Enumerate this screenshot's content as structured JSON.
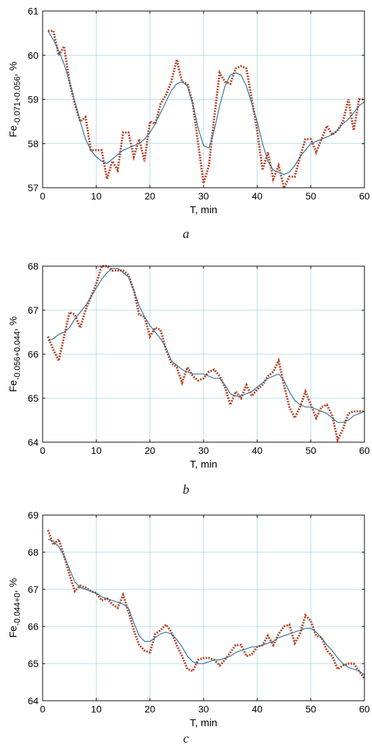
{
  "colors": {
    "measured": "#B5462A",
    "model": "#2A6F97",
    "grid": "#9FD2E6",
    "axis": "#000000"
  },
  "chart_data": [
    {
      "type": "line",
      "caption": "a",
      "ylabel_main": "Fe",
      "ylabel_sub": "-0.071+0.056",
      "ylabel_tail": ", %",
      "xlabel": "T, min",
      "xlim": [
        0,
        60
      ],
      "ylim": [
        57,
        61
      ],
      "xticks": [
        0,
        10,
        20,
        30,
        40,
        50,
        60
      ],
      "yticks": [
        57,
        58,
        59,
        60,
        61
      ],
      "grid": true,
      "x": [
        1,
        2,
        3,
        4,
        5,
        6,
        7,
        8,
        9,
        10,
        11,
        12,
        13,
        14,
        15,
        16,
        17,
        18,
        19,
        20,
        21,
        22,
        23,
        24,
        25,
        26,
        27,
        28,
        29,
        30,
        31,
        32,
        33,
        34,
        35,
        36,
        37,
        38,
        39,
        40,
        41,
        42,
        43,
        44,
        45,
        46,
        47,
        48,
        49,
        50,
        51,
        52,
        53,
        54,
        55,
        56,
        57,
        58,
        59,
        60
      ],
      "series": [
        {
          "style": "dotted",
          "values": [
            60.55,
            60.55,
            60.0,
            60.2,
            59.4,
            58.9,
            58.5,
            58.6,
            57.85,
            57.85,
            57.85,
            57.2,
            57.6,
            57.4,
            58.25,
            58.25,
            57.7,
            58.1,
            57.6,
            58.5,
            58.45,
            58.9,
            59.1,
            59.4,
            59.9,
            59.4,
            59.35,
            58.9,
            58.0,
            57.1,
            57.5,
            58.6,
            59.6,
            59.4,
            59.35,
            59.7,
            59.75,
            59.7,
            59.0,
            58.3,
            57.4,
            57.8,
            57.2,
            57.5,
            57.0,
            57.25,
            57.25,
            57.7,
            58.1,
            58.1,
            57.8,
            58.1,
            58.4,
            58.2,
            58.3,
            58.5,
            59.0,
            58.3,
            59.0,
            59.0
          ]
        },
        {
          "style": "solid",
          "values": [
            60.55,
            60.35,
            60.1,
            59.8,
            59.4,
            58.95,
            58.5,
            58.1,
            57.85,
            57.7,
            57.6,
            57.55,
            57.65,
            57.75,
            57.85,
            57.9,
            57.95,
            58.0,
            58.1,
            58.25,
            58.45,
            58.7,
            58.95,
            59.2,
            59.35,
            59.4,
            59.3,
            58.9,
            58.35,
            57.95,
            57.9,
            58.3,
            58.85,
            59.3,
            59.55,
            59.6,
            59.55,
            59.3,
            58.9,
            58.5,
            58.0,
            57.6,
            57.4,
            57.35,
            57.3,
            57.35,
            57.5,
            57.7,
            57.85,
            58.0,
            58.05,
            58.1,
            58.15,
            58.2,
            58.3,
            58.45,
            58.55,
            58.7,
            58.85,
            58.95
          ]
        }
      ]
    },
    {
      "type": "line",
      "caption": "b",
      "ylabel_main": "Fe",
      "ylabel_sub": "-0.056+0.044",
      "ylabel_tail": ", %",
      "xlabel": "T, min",
      "xlim": [
        0,
        60
      ],
      "ylim": [
        64,
        68
      ],
      "xticks": [
        0,
        10,
        20,
        30,
        40,
        50,
        60
      ],
      "yticks": [
        64,
        65,
        66,
        67,
        68
      ],
      "grid": true,
      "x": [
        1,
        2,
        3,
        4,
        5,
        6,
        7,
        8,
        9,
        10,
        11,
        12,
        13,
        14,
        15,
        16,
        17,
        18,
        19,
        20,
        21,
        22,
        23,
        24,
        25,
        26,
        27,
        28,
        29,
        30,
        31,
        32,
        33,
        34,
        35,
        36,
        37,
        38,
        39,
        40,
        41,
        42,
        43,
        44,
        45,
        46,
        47,
        48,
        49,
        50,
        51,
        52,
        53,
        54,
        55,
        56,
        57,
        58,
        59,
        60
      ],
      "series": [
        {
          "style": "dotted",
          "values": [
            66.4,
            66.1,
            65.85,
            66.4,
            66.95,
            66.9,
            66.6,
            67.0,
            67.3,
            67.6,
            68.0,
            68.0,
            67.9,
            67.9,
            67.9,
            67.8,
            67.45,
            66.9,
            66.85,
            66.4,
            66.6,
            66.55,
            66.1,
            65.8,
            65.7,
            65.35,
            65.7,
            65.5,
            65.4,
            65.45,
            65.6,
            65.65,
            65.5,
            65.25,
            64.85,
            65.15,
            65.0,
            65.3,
            65.05,
            65.2,
            65.3,
            65.5,
            65.6,
            65.85,
            65.3,
            64.8,
            64.55,
            64.8,
            65.15,
            64.85,
            64.55,
            64.8,
            64.85,
            64.6,
            64.05,
            64.3,
            64.65,
            64.7,
            64.7,
            64.7
          ]
        },
        {
          "style": "solid",
          "values": [
            66.3,
            66.35,
            66.45,
            66.5,
            66.6,
            66.8,
            66.95,
            67.1,
            67.3,
            67.5,
            67.7,
            67.85,
            67.95,
            67.95,
            67.85,
            67.75,
            67.45,
            67.1,
            66.85,
            66.65,
            66.5,
            66.35,
            66.15,
            65.85,
            65.75,
            65.65,
            65.6,
            65.55,
            65.55,
            65.55,
            65.5,
            65.45,
            65.45,
            65.3,
            65.1,
            65.05,
            65.05,
            65.1,
            65.15,
            65.25,
            65.35,
            65.45,
            65.5,
            65.55,
            65.4,
            65.15,
            64.95,
            64.85,
            64.8,
            64.8,
            64.75,
            64.7,
            64.65,
            64.55,
            64.45,
            64.45,
            64.5,
            64.6,
            64.65,
            64.7
          ]
        }
      ]
    },
    {
      "type": "line",
      "caption": "c",
      "ylabel_main": "Fe",
      "ylabel_sub": "-0.044+0",
      "ylabel_tail": ", %",
      "xlabel": "T, min",
      "xlim": [
        0,
        60
      ],
      "ylim": [
        64,
        69
      ],
      "xticks": [
        0,
        10,
        20,
        30,
        40,
        50,
        60
      ],
      "yticks": [
        64,
        65,
        66,
        67,
        68,
        69
      ],
      "grid": true,
      "x": [
        1,
        2,
        3,
        4,
        5,
        6,
        7,
        8,
        9,
        10,
        11,
        12,
        13,
        14,
        15,
        16,
        17,
        18,
        19,
        20,
        21,
        22,
        23,
        24,
        25,
        26,
        27,
        28,
        29,
        30,
        31,
        32,
        33,
        34,
        35,
        36,
        37,
        38,
        39,
        40,
        41,
        42,
        43,
        44,
        45,
        46,
        47,
        48,
        49,
        50,
        51,
        52,
        53,
        54,
        55,
        56,
        57,
        58,
        59,
        60
      ],
      "series": [
        {
          "style": "dotted",
          "values": [
            68.6,
            68.2,
            68.35,
            67.9,
            67.4,
            66.95,
            67.1,
            67.05,
            66.95,
            66.9,
            66.7,
            66.75,
            66.6,
            66.5,
            66.85,
            66.4,
            65.9,
            65.5,
            65.35,
            65.3,
            65.8,
            65.9,
            66.05,
            65.85,
            65.5,
            65.2,
            64.85,
            64.8,
            65.1,
            65.15,
            65.15,
            65.1,
            64.95,
            65.1,
            65.3,
            65.5,
            65.5,
            65.2,
            65.25,
            65.45,
            65.5,
            65.75,
            65.5,
            65.8,
            66.0,
            66.05,
            65.55,
            65.8,
            66.3,
            66.15,
            65.75,
            65.7,
            65.35,
            65.2,
            64.85,
            64.95,
            65.0,
            65.0,
            64.8,
            64.6
          ]
        },
        {
          "style": "solid",
          "values": [
            68.35,
            68.3,
            68.15,
            67.9,
            67.55,
            67.2,
            67.05,
            67.0,
            66.95,
            66.9,
            66.8,
            66.75,
            66.7,
            66.65,
            66.6,
            66.5,
            66.1,
            65.75,
            65.6,
            65.6,
            65.7,
            65.8,
            65.85,
            65.8,
            65.65,
            65.45,
            65.2,
            65.05,
            65.0,
            65.0,
            65.05,
            65.1,
            65.1,
            65.15,
            65.2,
            65.3,
            65.35,
            65.4,
            65.45,
            65.45,
            65.5,
            65.55,
            65.6,
            65.7,
            65.75,
            65.8,
            65.85,
            65.9,
            65.95,
            65.95,
            65.85,
            65.7,
            65.5,
            65.35,
            65.15,
            65.0,
            64.9,
            64.85,
            64.8,
            64.7
          ]
        }
      ]
    }
  ]
}
